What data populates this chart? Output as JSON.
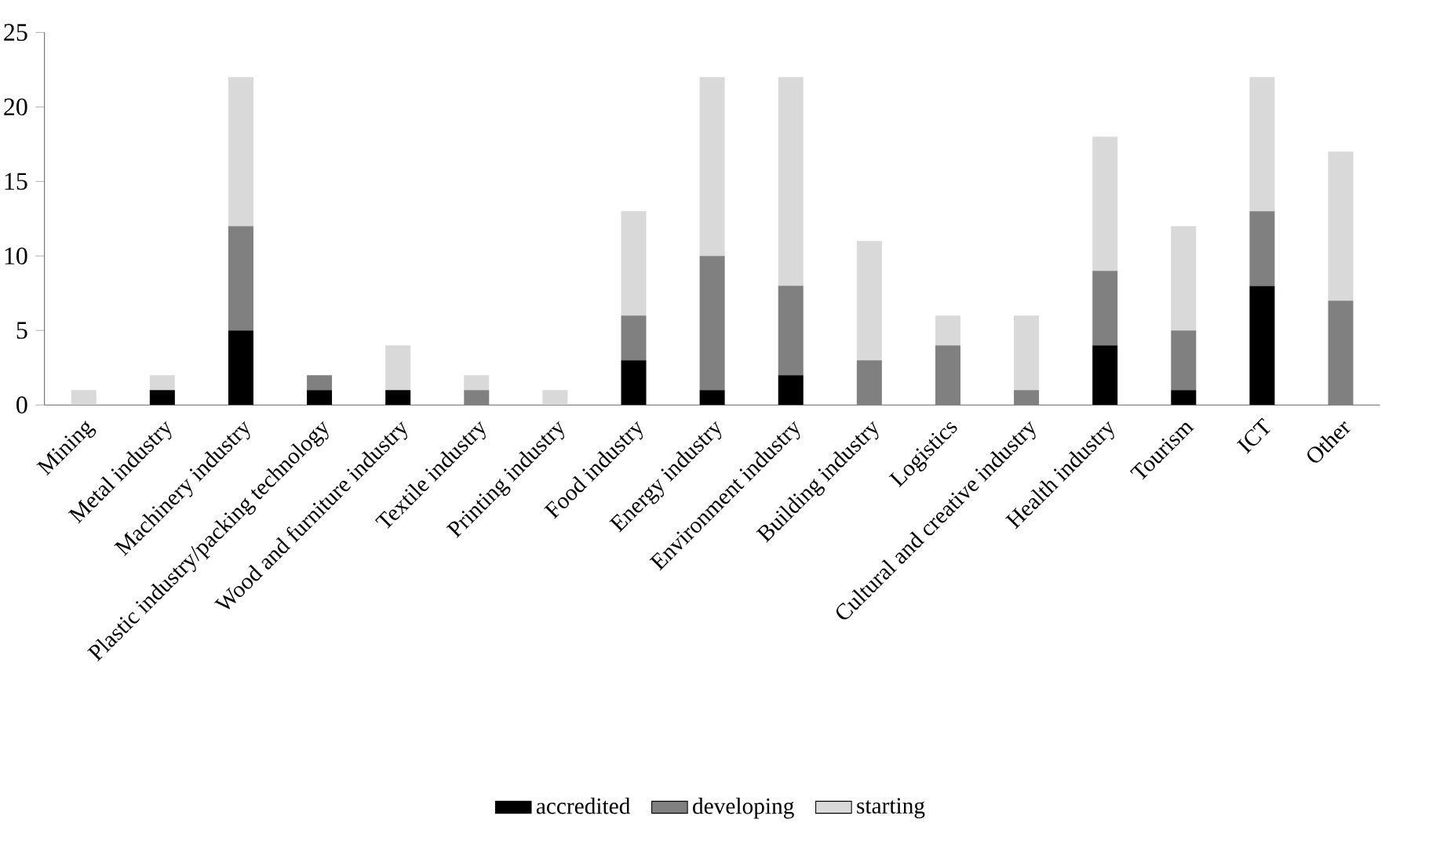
{
  "chart_data": {
    "type": "bar",
    "stacked": true,
    "categories": [
      "Mining",
      "Metal industry",
      "Machinery industry",
      "Plastic industry/packing technology",
      "Wood and furniture industry",
      "Textile industry",
      "Printing industry",
      "Food industry",
      "Energy industry",
      "Environment industry",
      "Building industry",
      "Logistics",
      "Cultural and creative industry",
      "Health industry",
      "Tourism",
      "ICT",
      "Other"
    ],
    "series": [
      {
        "name": "accredited",
        "color": "#000000",
        "values": [
          0,
          1,
          5,
          1,
          1,
          0,
          0,
          3,
          1,
          2,
          0,
          0,
          0,
          4,
          1,
          8,
          0
        ]
      },
      {
        "name": "developing",
        "color": "#808080",
        "values": [
          0,
          0,
          7,
          1,
          0,
          1,
          0,
          3,
          9,
          6,
          3,
          4,
          1,
          5,
          4,
          5,
          7
        ]
      },
      {
        "name": "starting",
        "color": "#d9d9d9",
        "values": [
          1,
          1,
          10,
          0,
          3,
          1,
          1,
          7,
          12,
          14,
          8,
          2,
          5,
          9,
          7,
          9,
          10
        ]
      }
    ],
    "ylim": [
      0,
      25
    ],
    "yticks": [
      0,
      5,
      10,
      15,
      20,
      25
    ],
    "grid": false,
    "legend": "bottom"
  }
}
